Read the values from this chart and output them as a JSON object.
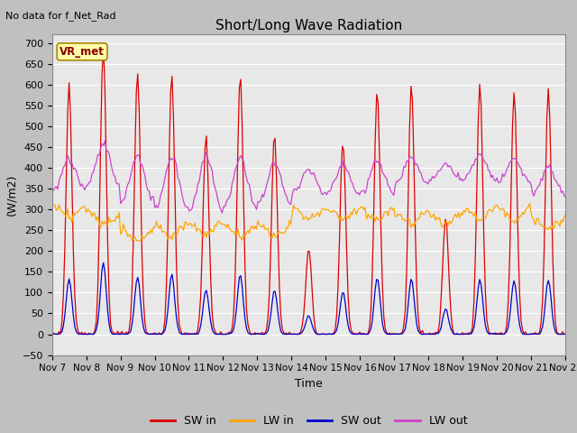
{
  "title": "Short/Long Wave Radiation",
  "xlabel": "Time",
  "ylabel": "(W/m2)",
  "top_label": "No data for f_Net_Rad",
  "station_label": "VR_met",
  "ylim": [
    -50,
    720
  ],
  "fig_bg_color": "#c8c8c8",
  "plot_bg_color": "#e8e8e8",
  "sw_in_color": "#dd0000",
  "lw_in_color": "#ffa500",
  "sw_out_color": "#0000cc",
  "lw_out_color": "#cc44cc",
  "start_day": 7,
  "n_days": 15
}
